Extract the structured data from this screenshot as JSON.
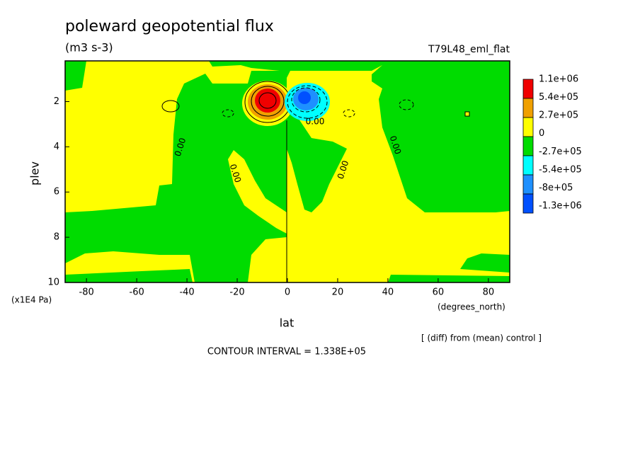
{
  "chart_data": {
    "type": "contour",
    "title": "poleward geopotential flux",
    "subtitle": "(m3 s-3)",
    "run_label": "T79L48_eml_flat",
    "x_label": "lat",
    "x_unit": "(degrees_north)",
    "y_label": "plev",
    "y_unit": "(x1E4 Pa)",
    "note": "[ (diff) from (mean) control ]",
    "contour_interval": "CONTOUR INTERVAL = 1.338E+05",
    "contour_labels": [
      "0.00",
      "0.00",
      "0.00",
      "0.00",
      "0.00"
    ],
    "xlim": [
      -88.5,
      88.5
    ],
    "xticks": [
      -80,
      -60,
      -40,
      -20,
      0,
      20,
      40,
      60,
      80
    ],
    "ylim": [
      10,
      0.2
    ],
    "yticks": [
      2,
      4,
      6,
      8,
      10
    ],
    "colorbar": {
      "colors": [
        "#f00000",
        "#f0a000",
        "#ffff00",
        "#00dc00",
        "#00ffff",
        "#1e90ff",
        "#0050ff"
      ],
      "levels": [
        {
          "value": 1100000,
          "label": "1.1e+06"
        },
        {
          "value": 540000,
          "label": "5.4e+05"
        },
        {
          "value": 270000,
          "label": "2.7e+05"
        },
        0,
        {
          "value": -270000,
          "label": "-2.7e+05"
        },
        {
          "value": -540000,
          "label": "-5.4e+05"
        },
        {
          "value": -800000,
          "label": "-8e+05"
        },
        {
          "value": -1300000,
          "label": "-1.3e+06"
        }
      ]
    }
  }
}
